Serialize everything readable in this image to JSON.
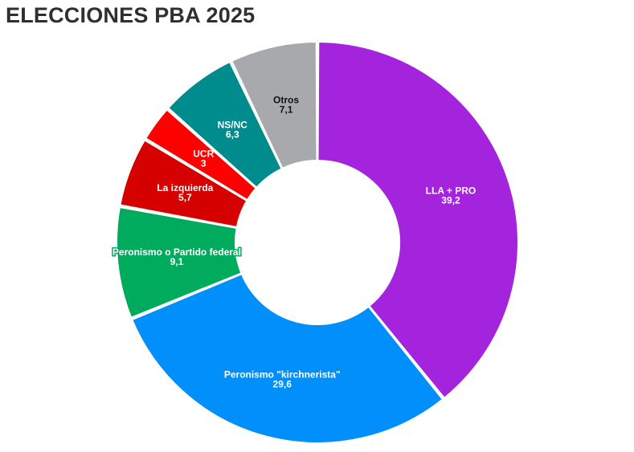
{
  "title": "ELECCIONES PBA 2025",
  "chart_data": {
    "type": "pie",
    "style": "donut",
    "title": "ELECCIONES PBA 2025",
    "slices": [
      {
        "label": "LLA + PRO",
        "display": "39,2",
        "value": 39.2,
        "color": "#a424de",
        "text_color": "#ffffff"
      },
      {
        "label": "Peronismo \"kirchnerista\"",
        "display": "29,6",
        "value": 29.6,
        "color": "#008ffb",
        "text_color": "#ffffff"
      },
      {
        "label": "Peronismo o Partido federal",
        "display": "9,1",
        "value": 9.1,
        "color": "#00ab5d",
        "text_color": "#ffffff"
      },
      {
        "label": "La izquierda",
        "display": "5,7",
        "value": 5.7,
        "color": "#d50000",
        "text_color": "#ffffff"
      },
      {
        "label": "UCR",
        "display": "3",
        "value": 3,
        "color": "#ff0000",
        "text_color": "#ffffff"
      },
      {
        "label": "NS/NC",
        "display": "6,3",
        "value": 6.3,
        "color": "#008c8c",
        "text_color": "#ffffff"
      },
      {
        "label": "Otros",
        "display": "7,1",
        "value": 7.1,
        "color": "#a7a9ad",
        "text_color": "#111111"
      }
    ]
  }
}
